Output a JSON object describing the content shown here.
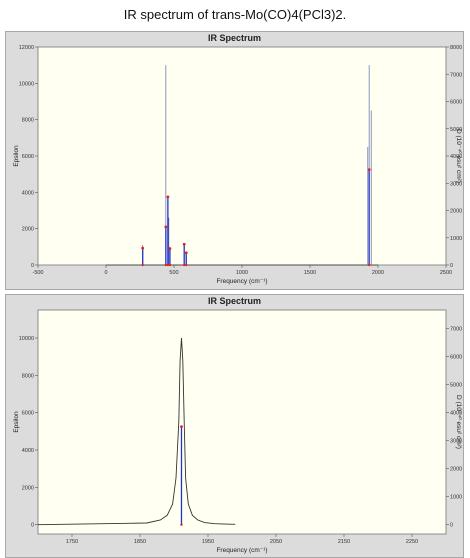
{
  "caption": "IR spectrum of trans-Mo(CO)4(PCl3)2.",
  "chart_data": [
    {
      "type": "line",
      "title": "IR Spectrum",
      "xlabel": "Frequency (cm⁻¹)",
      "ylabel": "Epsilon",
      "y2label": "D (10⁻⁴⁰ esu² cm²)",
      "xlim": [
        -500,
        2500
      ],
      "ylim": [
        0,
        12000
      ],
      "y2lim": [
        0,
        8000
      ],
      "x_ticks": [
        -500,
        0,
        500,
        1000,
        1500,
        2000,
        2500
      ],
      "y_ticks": [
        0,
        2000,
        4000,
        6000,
        8000,
        10000,
        12000
      ],
      "y_tick_labels": [
        "0",
        "2000",
        "4000",
        "6000",
        "8000",
        "10000",
        "12000"
      ],
      "y2_ticks": [
        0,
        1000,
        2000,
        3000,
        4000,
        5000,
        6000,
        7000,
        8000
      ],
      "grid": false,
      "baseline_x": [
        0,
        2000
      ],
      "series": [
        {
          "x": [
            270,
            440,
            455,
            462,
            470,
            575,
            590,
            1925,
            1935,
            1950
          ],
          "y": [
            1100,
            11000,
            2300,
            2600,
            1000,
            1200,
            700,
            6500,
            11000,
            8500
          ]
        }
      ],
      "sticks": {
        "x": [
          270,
          440,
          455,
          470,
          575,
          590,
          1935
        ],
        "d": [
          620,
          1400,
          2500,
          600,
          760,
          450,
          3500
        ]
      }
    },
    {
      "type": "line",
      "title": "IR Spectrum",
      "xlabel": "Frequency (cm⁻¹)",
      "ylabel": "Epsilon",
      "y2label": "D (10⁻⁴⁰ esu² cm²)",
      "xlim": [
        1700,
        2300
      ],
      "ylim": [
        -500,
        11500
      ],
      "y2lim": [
        -333,
        7667
      ],
      "x_ticks": [
        1750,
        1850,
        1950,
        2050,
        2150,
        2250
      ],
      "x_tick_labels": [
        "1750",
        "1850",
        "1950",
        "2050",
        "2150",
        "2250"
      ],
      "y_ticks": [
        0,
        2000,
        4000,
        6000,
        8000,
        10000
      ],
      "y_tick_labels": [
        "0",
        "2000",
        "4000",
        "6000",
        "8000",
        "10000"
      ],
      "y2_ticks": [
        0,
        1000,
        2000,
        3000,
        4000,
        5000,
        6000,
        7000
      ],
      "grid": false,
      "series": [
        {
          "x": [
            1700,
            1860,
            1880,
            1890,
            1898,
            1903,
            1907,
            1909,
            1911,
            1913,
            1915,
            1917,
            1921,
            1927,
            1935,
            1945,
            1960,
            1975,
            1990
          ],
          "y": [
            0,
            90,
            250,
            500,
            1100,
            2500,
            5500,
            8800,
            10000,
            8800,
            5500,
            2500,
            1100,
            500,
            250,
            110,
            50,
            30,
            20
          ]
        }
      ],
      "sticks": {
        "x": [
          1911
        ],
        "d": [
          3500
        ]
      }
    }
  ]
}
